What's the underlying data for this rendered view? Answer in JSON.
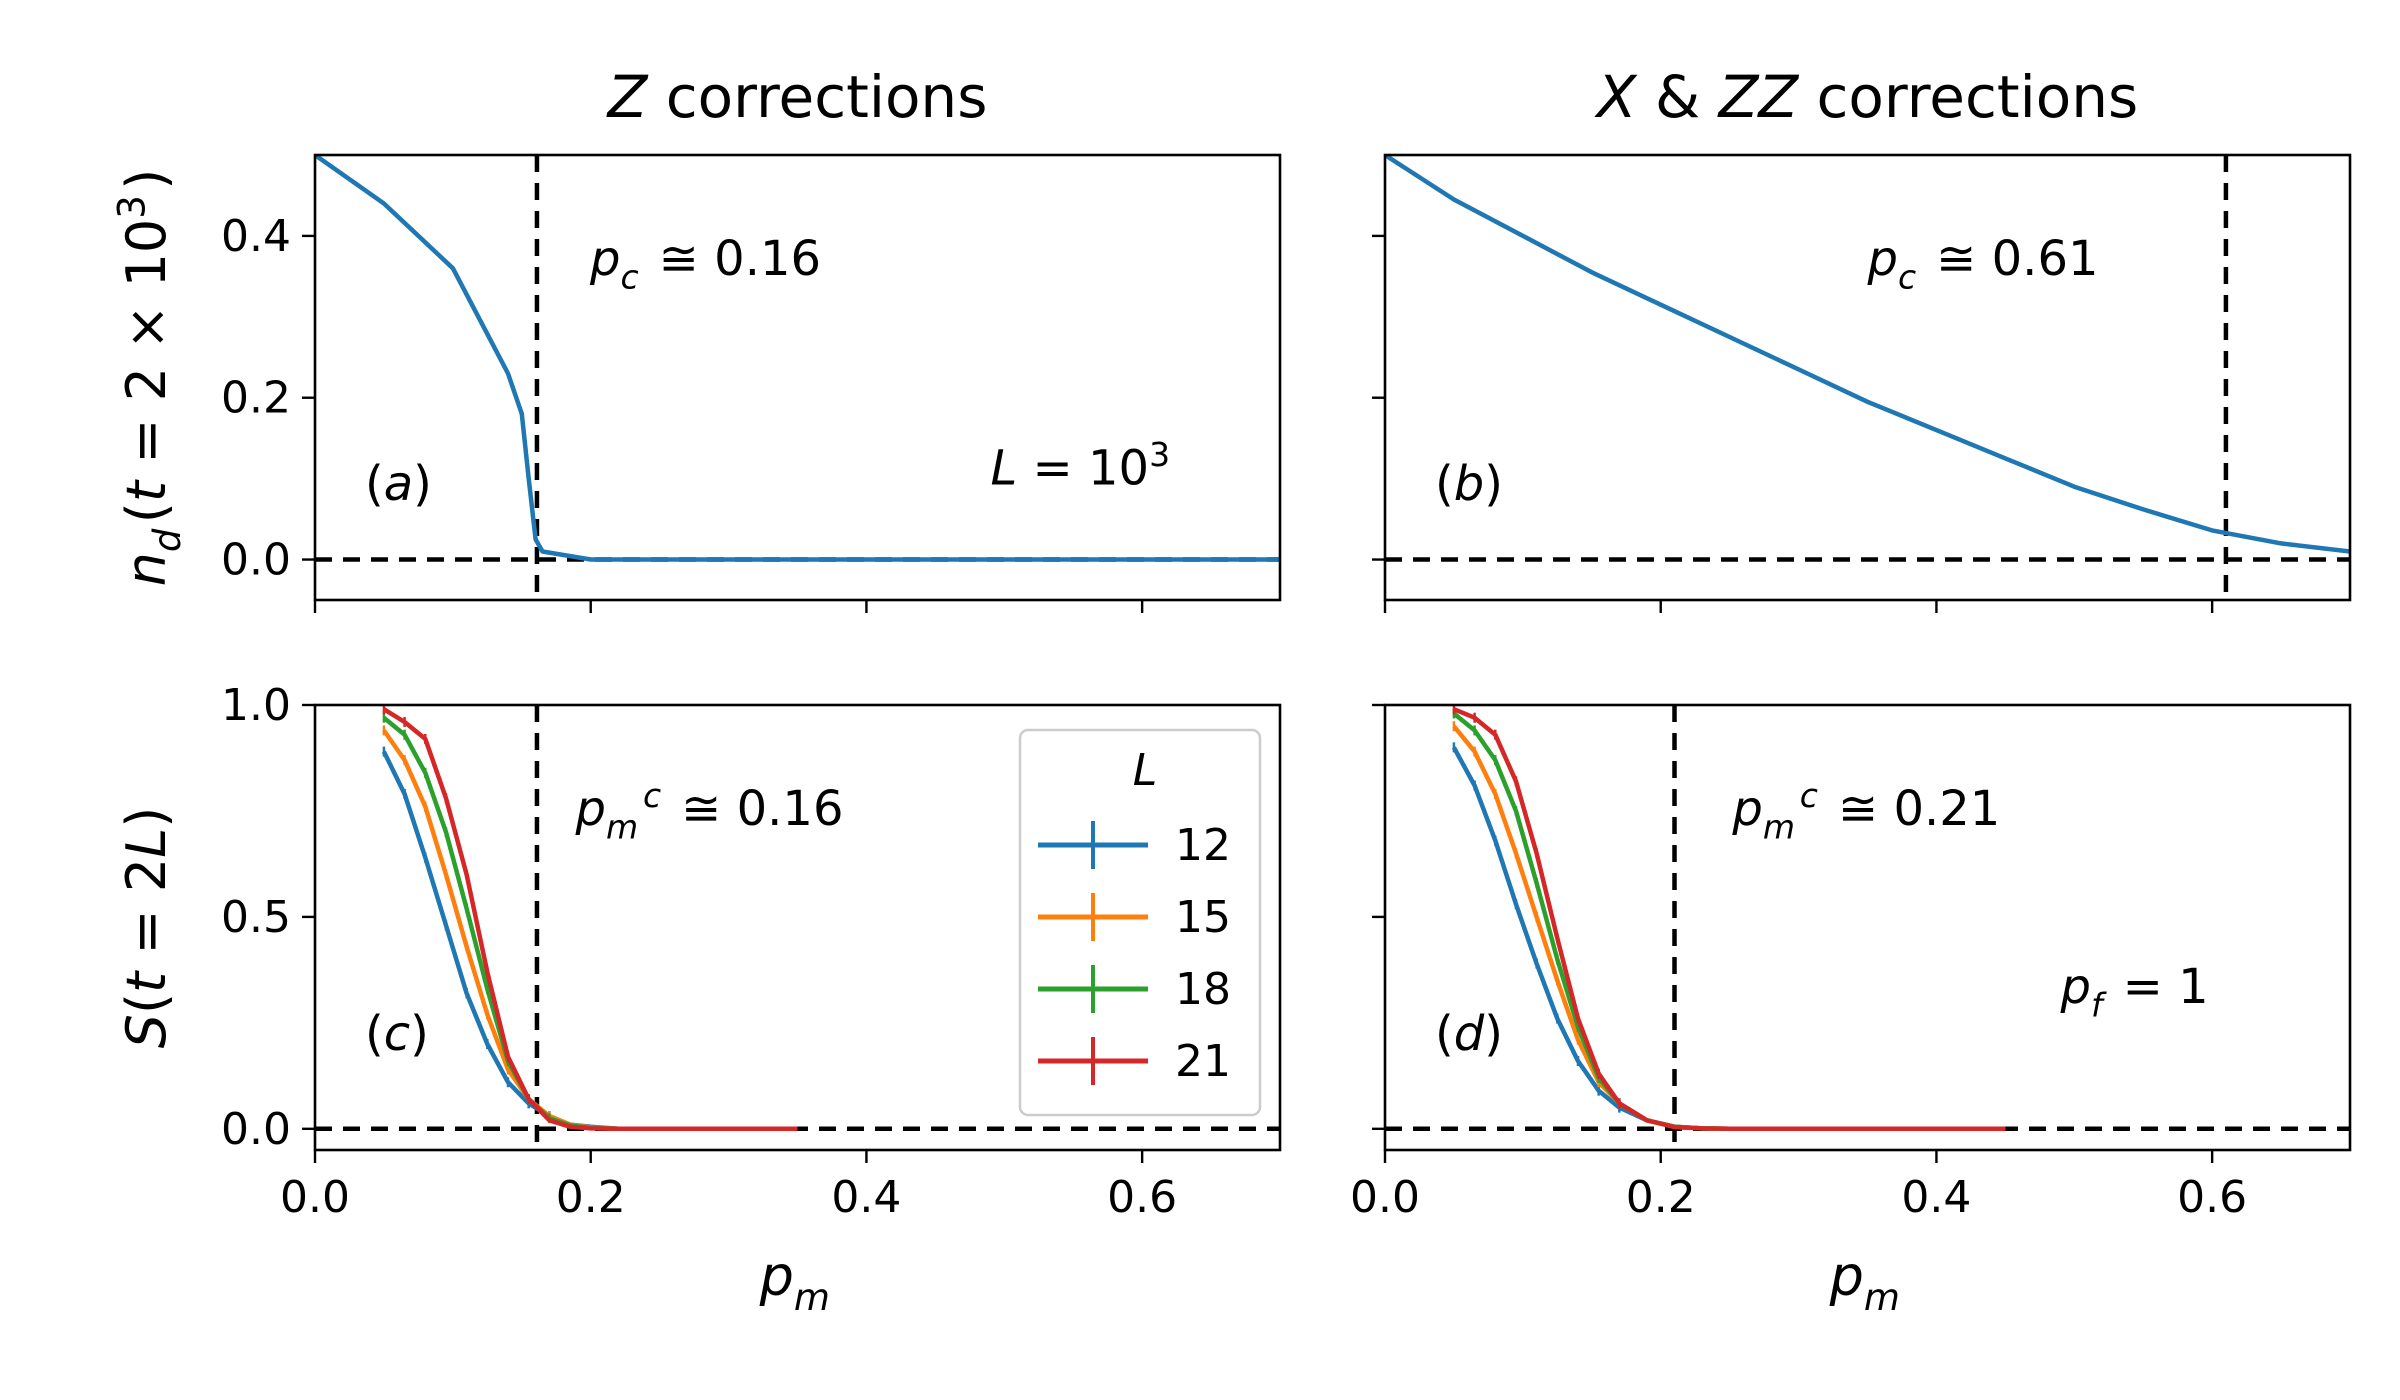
{
  "chart_data": [
    {
      "id": "a",
      "type": "line",
      "title": "Z corrections",
      "ylabel": "n_d(t = 2 × 10^3)",
      "xlabel": "",
      "xlim": [
        0,
        0.7
      ],
      "ylim": [
        -0.05,
        0.5
      ],
      "xticks": [
        0.0,
        0.2,
        0.4,
        0.6
      ],
      "yticks": [
        0.0,
        0.2,
        0.4
      ],
      "xtick_labels_shown": false,
      "ytick_labels_shown": true,
      "panel_label": "(a)",
      "annotations": [
        "p_c ≅ 0.16",
        "L = 10^3"
      ],
      "vline": 0.161,
      "hline": 0.0,
      "series": [
        {
          "color": "#1f77b4",
          "x": [
            0.0,
            0.05,
            0.1,
            0.14,
            0.15,
            0.155,
            0.16,
            0.165,
            0.2,
            0.25,
            0.3,
            0.4,
            0.5,
            0.6,
            0.7
          ],
          "y": [
            0.5,
            0.44,
            0.36,
            0.23,
            0.18,
            0.1,
            0.025,
            0.01,
            0.0,
            0.0,
            0.0,
            0.0,
            0.0,
            0.0,
            0.0
          ]
        }
      ]
    },
    {
      "id": "b",
      "type": "line",
      "title": "X & ZZ corrections",
      "ylabel": "",
      "xlabel": "",
      "xlim": [
        0,
        0.7
      ],
      "ylim": [
        -0.05,
        0.5
      ],
      "xticks": [
        0.0,
        0.2,
        0.4,
        0.6
      ],
      "yticks": [
        0.0,
        0.2,
        0.4
      ],
      "xtick_labels_shown": false,
      "ytick_labels_shown": false,
      "panel_label": "(b)",
      "annotations": [
        "p_c ≅ 0.61"
      ],
      "vline": 0.61,
      "hline": 0.0,
      "series": [
        {
          "color": "#1f77b4",
          "x": [
            0.0,
            0.05,
            0.1,
            0.15,
            0.2,
            0.25,
            0.3,
            0.35,
            0.4,
            0.45,
            0.5,
            0.55,
            0.6,
            0.65,
            0.7
          ],
          "y": [
            0.5,
            0.445,
            0.4,
            0.355,
            0.315,
            0.275,
            0.235,
            0.195,
            0.16,
            0.125,
            0.09,
            0.062,
            0.036,
            0.02,
            0.01
          ]
        }
      ]
    },
    {
      "id": "c",
      "type": "line",
      "title": "",
      "ylabel": "S(t = 2L)",
      "xlabel": "p_m",
      "xlim": [
        0,
        0.7
      ],
      "ylim": [
        -0.05,
        1.0
      ],
      "xticks": [
        0.0,
        0.2,
        0.4,
        0.6
      ],
      "yticks": [
        0.0,
        0.5,
        1.0
      ],
      "xtick_labels_shown": true,
      "ytick_labels_shown": true,
      "panel_label": "(c)",
      "annotations": [
        "p_m^c ≅ 0.16"
      ],
      "vline": 0.161,
      "hline": 0.0,
      "legend": {
        "title": "L",
        "location": "upper right"
      },
      "series": [
        {
          "name": "12",
          "color": "#1f77b4",
          "x": [
            0.05,
            0.065,
            0.08,
            0.095,
            0.11,
            0.125,
            0.14,
            0.155,
            0.17,
            0.185,
            0.2,
            0.22,
            0.25,
            0.3,
            0.35
          ],
          "y": [
            0.89,
            0.79,
            0.64,
            0.48,
            0.32,
            0.2,
            0.11,
            0.06,
            0.03,
            0.01,
            0.005,
            0.0,
            0.0,
            0.0,
            0.0
          ]
        },
        {
          "name": "15",
          "color": "#ff7f0e",
          "x": [
            0.05,
            0.065,
            0.08,
            0.095,
            0.11,
            0.125,
            0.14,
            0.155,
            0.17,
            0.185,
            0.2,
            0.22,
            0.25,
            0.3,
            0.35
          ],
          "y": [
            0.94,
            0.87,
            0.76,
            0.6,
            0.43,
            0.27,
            0.14,
            0.07,
            0.03,
            0.01,
            0.003,
            0.0,
            0.0,
            0.0,
            0.0
          ]
        },
        {
          "name": "18",
          "color": "#2ca02c",
          "x": [
            0.05,
            0.065,
            0.08,
            0.095,
            0.11,
            0.125,
            0.14,
            0.155,
            0.17,
            0.185,
            0.2,
            0.22,
            0.25,
            0.3,
            0.35
          ],
          "y": [
            0.97,
            0.93,
            0.84,
            0.7,
            0.52,
            0.33,
            0.16,
            0.07,
            0.025,
            0.008,
            0.002,
            0.0,
            0.0,
            0.0,
            0.0
          ]
        },
        {
          "name": "21",
          "color": "#d62728",
          "x": [
            0.05,
            0.065,
            0.08,
            0.095,
            0.11,
            0.125,
            0.14,
            0.155,
            0.17,
            0.185,
            0.2,
            0.22,
            0.25,
            0.3,
            0.35
          ],
          "y": [
            0.99,
            0.96,
            0.92,
            0.78,
            0.6,
            0.37,
            0.17,
            0.07,
            0.02,
            0.005,
            0.001,
            0.0,
            0.0,
            0.0,
            0.0
          ]
        }
      ]
    },
    {
      "id": "d",
      "type": "line",
      "title": "",
      "ylabel": "",
      "xlabel": "p_m",
      "xlim": [
        0,
        0.7
      ],
      "ylim": [
        -0.05,
        1.0
      ],
      "xticks": [
        0.0,
        0.2,
        0.4,
        0.6
      ],
      "yticks": [
        0.0,
        0.5,
        1.0
      ],
      "xtick_labels_shown": true,
      "ytick_labels_shown": false,
      "panel_label": "(d)",
      "annotations": [
        "p_m^c ≅ 0.21",
        "p_f = 1"
      ],
      "vline": 0.21,
      "hline": 0.0,
      "series": [
        {
          "name": "12",
          "color": "#1f77b4",
          "x": [
            0.05,
            0.065,
            0.08,
            0.095,
            0.11,
            0.125,
            0.14,
            0.155,
            0.17,
            0.19,
            0.21,
            0.23,
            0.25,
            0.3,
            0.35,
            0.4,
            0.45
          ],
          "y": [
            0.9,
            0.81,
            0.68,
            0.53,
            0.39,
            0.26,
            0.16,
            0.09,
            0.05,
            0.02,
            0.005,
            0.001,
            0.0,
            0.0,
            0.0,
            0.0,
            0.0
          ]
        },
        {
          "name": "15",
          "color": "#ff7f0e",
          "x": [
            0.05,
            0.065,
            0.08,
            0.095,
            0.11,
            0.125,
            0.14,
            0.155,
            0.17,
            0.19,
            0.21,
            0.23,
            0.25,
            0.3,
            0.35,
            0.4,
            0.45
          ],
          "y": [
            0.95,
            0.89,
            0.79,
            0.65,
            0.5,
            0.35,
            0.21,
            0.11,
            0.06,
            0.02,
            0.005,
            0.001,
            0.0,
            0.0,
            0.0,
            0.0,
            0.0
          ]
        },
        {
          "name": "18",
          "color": "#2ca02c",
          "x": [
            0.05,
            0.065,
            0.08,
            0.095,
            0.11,
            0.125,
            0.14,
            0.155,
            0.17,
            0.19,
            0.21,
            0.23,
            0.25,
            0.3,
            0.35,
            0.4,
            0.45
          ],
          "y": [
            0.98,
            0.94,
            0.87,
            0.75,
            0.58,
            0.4,
            0.24,
            0.12,
            0.06,
            0.02,
            0.005,
            0.001,
            0.0,
            0.0,
            0.0,
            0.0,
            0.0
          ]
        },
        {
          "name": "21",
          "color": "#d62728",
          "x": [
            0.05,
            0.065,
            0.08,
            0.095,
            0.11,
            0.125,
            0.14,
            0.155,
            0.17,
            0.19,
            0.21,
            0.23,
            0.25,
            0.3,
            0.35,
            0.4,
            0.45
          ],
          "y": [
            0.99,
            0.97,
            0.93,
            0.82,
            0.65,
            0.45,
            0.26,
            0.13,
            0.06,
            0.02,
            0.004,
            0.001,
            0.0,
            0.0,
            0.0,
            0.0,
            0.0
          ]
        }
      ]
    }
  ]
}
